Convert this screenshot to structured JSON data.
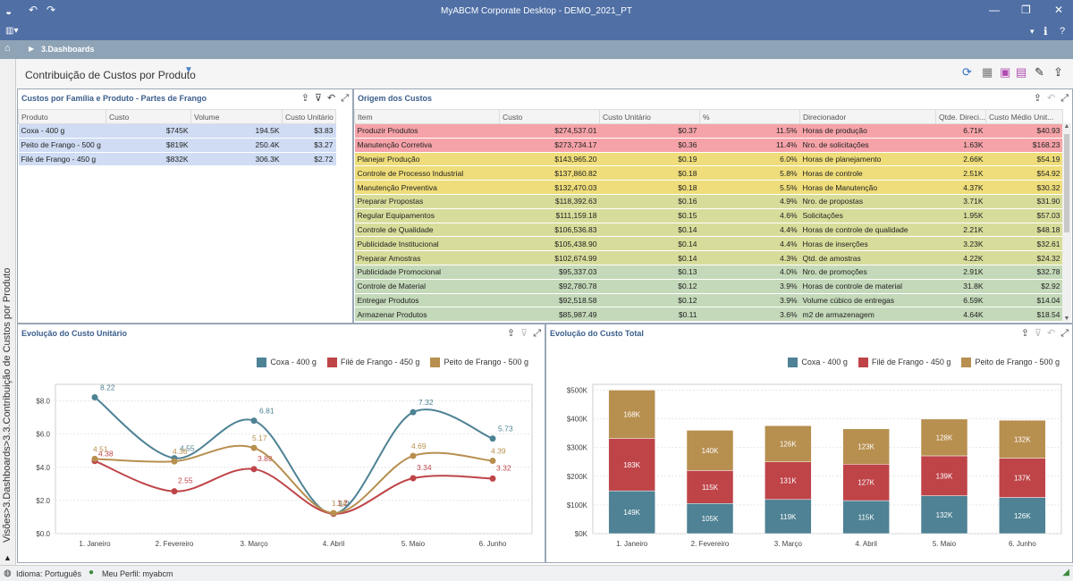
{
  "window": {
    "title": "MyABCM Corporate Desktop - DEMO_2021_PT"
  },
  "nav": {
    "breadcrumb": "3.Dashboards"
  },
  "sidebar": {
    "vertical_path": "Visões>3.Dashboards>3.3.Contribuição de Custos por Produto"
  },
  "page": {
    "title": "Contribuição de Custos por Produto"
  },
  "colors": {
    "red": "#f5a3a8",
    "yellow": "#eedd7a",
    "olive": "#d8dc9a",
    "green": "#c4d9b9",
    "blue_row": "#cfdcf3",
    "coxa": "#4e8294",
    "file": "#be4448",
    "peito": "#b78f4f"
  },
  "panel1": {
    "title": "Custos por Família e Produto - Partes de Frango",
    "columns": [
      "Produto",
      "Custo",
      "Volume",
      "Custo Unitário"
    ],
    "rows": [
      [
        "Coxa - 400 g",
        "$745K",
        "194.5K",
        "$3.83"
      ],
      [
        "Peito de Frango - 500 g",
        "$819K",
        "250.4K",
        "$3.27"
      ],
      [
        "Filé de Frango - 450 g",
        "$832K",
        "306.3K",
        "$2.72"
      ]
    ]
  },
  "panel2": {
    "title": "Origem dos Custos",
    "columns": [
      "Item",
      "Custo",
      "Custo Unitário",
      "%",
      "Direcionador",
      "Qtde. Direci...",
      "Custo Médio Unit..."
    ],
    "rows": [
      {
        "band": "red",
        "cells": [
          "Produzir Produtos",
          "$274,537.01",
          "$0.37",
          "11.5%",
          "Horas de produção",
          "6.71K",
          "$40.93"
        ]
      },
      {
        "band": "red",
        "cells": [
          "Manutenção Corretiva",
          "$273,734.17",
          "$0.36",
          "11.4%",
          "Nro. de solicitações",
          "1.63K",
          "$168.23"
        ]
      },
      {
        "band": "yellow",
        "cells": [
          "Planejar Produção",
          "$143,965.20",
          "$0.19",
          "6.0%",
          "Horas de planejamento",
          "2.66K",
          "$54.19"
        ]
      },
      {
        "band": "yellow",
        "cells": [
          "Controle de Processo Industrial",
          "$137,860.82",
          "$0.18",
          "5.8%",
          "Horas de controle",
          "2.51K",
          "$54.92"
        ]
      },
      {
        "band": "yellow",
        "cells": [
          "Manutenção Preventiva",
          "$132,470.03",
          "$0.18",
          "5.5%",
          "Horas de Manutenção",
          "4.37K",
          "$30.32"
        ]
      },
      {
        "band": "olive",
        "cells": [
          "Preparar Propostas",
          "$118,392.63",
          "$0.16",
          "4.9%",
          "Nro. de propostas",
          "3.71K",
          "$31.90"
        ]
      },
      {
        "band": "olive",
        "cells": [
          "Regular Equipamentos",
          "$111,159.18",
          "$0.15",
          "4.6%",
          "Solicitações",
          "1.95K",
          "$57.03"
        ]
      },
      {
        "band": "olive",
        "cells": [
          "Controle de Qualidade",
          "$106,536.83",
          "$0.14",
          "4.4%",
          "Horas de controle de qualidade",
          "2.21K",
          "$48.18"
        ]
      },
      {
        "band": "olive",
        "cells": [
          "Publicidade Institucional",
          "$105,438.90",
          "$0.14",
          "4.4%",
          "Horas de inserções",
          "3.23K",
          "$32.61"
        ]
      },
      {
        "band": "olive",
        "cells": [
          "Preparar Amostras",
          "$102,674.99",
          "$0.14",
          "4.3%",
          "Qtd. de amostras",
          "4.22K",
          "$24.32"
        ]
      },
      {
        "band": "green",
        "cells": [
          "Publicidade Promocional",
          "$95,337.03",
          "$0.13",
          "4.0%",
          "Nro. de promoções",
          "2.91K",
          "$32.78"
        ]
      },
      {
        "band": "green",
        "cells": [
          "Controle de Material",
          "$92,780.78",
          "$0.12",
          "3.9%",
          "Horas de controle de material",
          "31.8K",
          "$2.92"
        ]
      },
      {
        "band": "green",
        "cells": [
          "Entregar Produtos",
          "$92,518.58",
          "$0.12",
          "3.9%",
          "Volume cúbico de entregas",
          "6.59K",
          "$14.04"
        ]
      },
      {
        "band": "green",
        "cells": [
          "Armazenar Produtos",
          "$85,987.49",
          "$0.11",
          "3.6%",
          "m2 de armazenagem",
          "4.64K",
          "$18.54"
        ]
      }
    ]
  },
  "panel3": {
    "title": "Evolução do Custo Unitário"
  },
  "panel4": {
    "title": "Evolução do Custo Total"
  },
  "chart_data": [
    {
      "type": "line",
      "categories": [
        "1. Janeiro",
        "2. Fevereiro",
        "3. Março",
        "4. Abril",
        "5. Maio",
        "6. Junho"
      ],
      "series": [
        {
          "name": "Coxa - 400 g",
          "values": [
            8.22,
            4.55,
            6.81,
            1.2,
            7.32,
            5.73
          ],
          "labels": [
            "8.22",
            "4.55",
            "6.81",
            "1.2",
            "7.32",
            "5.73"
          ]
        },
        {
          "name": "Filé de Frango - 450 g",
          "values": [
            4.38,
            2.55,
            3.89,
            1.2,
            3.34,
            3.32
          ],
          "labels": [
            "4.38",
            "2.55",
            "3.89",
            "1.2",
            "3.34",
            "3.32"
          ]
        },
        {
          "name": "Peito de Frango - 500 g",
          "values": [
            4.51,
            4.36,
            5.17,
            1.24,
            4.69,
            4.39
          ],
          "labels": [
            "4.51",
            "4.36",
            "5.17",
            "1.24",
            "4.69",
            "4.39"
          ]
        }
      ],
      "yticks": [
        "$0.0",
        "$2.0",
        "$4.0",
        "$6.0",
        "$8.0"
      ],
      "ylim": [
        0,
        9
      ],
      "legend": "top-right"
    },
    {
      "type": "bar",
      "stacked": true,
      "categories": [
        "1. Janeiro",
        "2. Fevereiro",
        "3. Março",
        "4. Abril",
        "5. Maio",
        "6. Junho"
      ],
      "series": [
        {
          "name": "Coxa - 400 g",
          "values": [
            149,
            105,
            119,
            115,
            132,
            126
          ],
          "labels": [
            "149K",
            "105K",
            "119K",
            "115K",
            "132K",
            "126K"
          ]
        },
        {
          "name": "Filé de Frango - 450 g",
          "values": [
            183,
            115,
            131,
            127,
            139,
            137
          ],
          "labels": [
            "183K",
            "115K",
            "131K",
            "127K",
            "139K",
            "137K"
          ]
        },
        {
          "name": "Peito de Frango - 500 g",
          "values": [
            168,
            140,
            126,
            123,
            128,
            132
          ],
          "labels": [
            "168K",
            "140K",
            "126K",
            "123K",
            "128K",
            "132K"
          ]
        }
      ],
      "yticks": [
        "$0K",
        "$100K",
        "$200K",
        "$300K",
        "$400K",
        "$500K"
      ],
      "ylim": [
        0,
        520
      ],
      "legend": "top-right"
    }
  ],
  "status": {
    "language": "Idioma: Português",
    "profile": "Meu Perfil: myabcm"
  }
}
